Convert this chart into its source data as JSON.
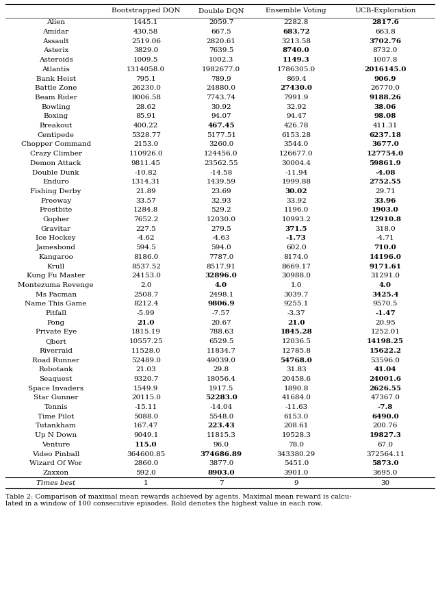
{
  "caption": "Table 2: Comparison of maximal mean rewards achieved by agents. Maximal mean reward is calcu-\nlated in a window of 100 consecutive episodes. Bold denotes the highest value in each row.",
  "columns": [
    "Bootstrapped DQN",
    "Double DQN",
    "Ensemble Voting",
    "UCB-Exploration"
  ],
  "rows": [
    [
      "Alien",
      "1445.1",
      "2059.7",
      "2282.8",
      "2817.6",
      [
        0,
        0,
        0,
        1
      ]
    ],
    [
      "Amidar",
      "430.58",
      "667.5",
      "683.72",
      "663.8",
      [
        0,
        0,
        1,
        0
      ]
    ],
    [
      "Assault",
      "2519.06",
      "2820.61",
      "3213.58",
      "3702.76",
      [
        0,
        0,
        0,
        1
      ]
    ],
    [
      "Asterix",
      "3829.0",
      "7639.5",
      "8740.0",
      "8732.0",
      [
        0,
        0,
        1,
        0
      ]
    ],
    [
      "Asteroids",
      "1009.5",
      "1002.3",
      "1149.3",
      "1007.8",
      [
        0,
        0,
        1,
        0
      ]
    ],
    [
      "Atlantis",
      "1314058.0",
      "1982677.0",
      "1786305.0",
      "2016145.0",
      [
        0,
        0,
        0,
        1
      ]
    ],
    [
      "Bank Heist",
      "795.1",
      "789.9",
      "869.4",
      "906.9",
      [
        0,
        0,
        0,
        1
      ]
    ],
    [
      "Battle Zone",
      "26230.0",
      "24880.0",
      "27430.0",
      "26770.0",
      [
        0,
        0,
        1,
        0
      ]
    ],
    [
      "Beam Rider",
      "8006.58",
      "7743.74",
      "7991.9",
      "9188.26",
      [
        0,
        0,
        0,
        1
      ]
    ],
    [
      "Bowling",
      "28.62",
      "30.92",
      "32.92",
      "38.06",
      [
        0,
        0,
        0,
        1
      ]
    ],
    [
      "Boxing",
      "85.91",
      "94.07",
      "94.47",
      "98.08",
      [
        0,
        0,
        0,
        1
      ]
    ],
    [
      "Breakout",
      "400.22",
      "467.45",
      "426.78",
      "411.31",
      [
        0,
        1,
        0,
        0
      ]
    ],
    [
      "Centipede",
      "5328.77",
      "5177.51",
      "6153.28",
      "6237.18",
      [
        0,
        0,
        0,
        1
      ]
    ],
    [
      "Chopper Command",
      "2153.0",
      "3260.0",
      "3544.0",
      "3677.0",
      [
        0,
        0,
        0,
        1
      ]
    ],
    [
      "Crazy Climber",
      "110926.0",
      "124456.0",
      "126677.0",
      "127754.0",
      [
        0,
        0,
        0,
        1
      ]
    ],
    [
      "Demon Attack",
      "9811.45",
      "23562.55",
      "30004.4",
      "59861.9",
      [
        0,
        0,
        0,
        1
      ]
    ],
    [
      "Double Dunk",
      "-10.82",
      "-14.58",
      "-11.94",
      "-4.08",
      [
        0,
        0,
        0,
        1
      ]
    ],
    [
      "Enduro",
      "1314.31",
      "1439.59",
      "1999.88",
      "2752.55",
      [
        0,
        0,
        0,
        1
      ]
    ],
    [
      "Fishing Derby",
      "21.89",
      "23.69",
      "30.02",
      "29.71",
      [
        0,
        0,
        1,
        0
      ]
    ],
    [
      "Freeway",
      "33.57",
      "32.93",
      "33.92",
      "33.96",
      [
        0,
        0,
        0,
        1
      ]
    ],
    [
      "Frostbite",
      "1284.8",
      "529.2",
      "1196.0",
      "1903.0",
      [
        0,
        0,
        0,
        1
      ]
    ],
    [
      "Gopher",
      "7652.2",
      "12030.0",
      "10993.2",
      "12910.8",
      [
        0,
        0,
        0,
        1
      ]
    ],
    [
      "Gravitar",
      "227.5",
      "279.5",
      "371.5",
      "318.0",
      [
        0,
        0,
        1,
        0
      ]
    ],
    [
      "Ice Hockey",
      "-4.62",
      "-4.63",
      "-1.73",
      "-4.71",
      [
        0,
        0,
        1,
        0
      ]
    ],
    [
      "Jamesbond",
      "594.5",
      "594.0",
      "602.0",
      "710.0",
      [
        0,
        0,
        0,
        1
      ]
    ],
    [
      "Kangaroo",
      "8186.0",
      "7787.0",
      "8174.0",
      "14196.0",
      [
        0,
        0,
        0,
        1
      ]
    ],
    [
      "Krull",
      "8537.52",
      "8517.91",
      "8669.17",
      "9171.61",
      [
        0,
        0,
        0,
        1
      ]
    ],
    [
      "Kung Fu Master",
      "24153.0",
      "32896.0",
      "30988.0",
      "31291.0",
      [
        0,
        1,
        0,
        0
      ]
    ],
    [
      "Montezuma Revenge",
      "2.0",
      "4.0",
      "1.0",
      "4.0",
      [
        0,
        1,
        0,
        1
      ]
    ],
    [
      "Ms Pacman",
      "2508.7",
      "2498.1",
      "3039.7",
      "3425.4",
      [
        0,
        0,
        0,
        1
      ]
    ],
    [
      "Name This Game",
      "8212.4",
      "9806.9",
      "9255.1",
      "9570.5",
      [
        0,
        1,
        0,
        0
      ]
    ],
    [
      "Pitfall",
      "-5.99",
      "-7.57",
      "-3.37",
      "-1.47",
      [
        0,
        0,
        0,
        1
      ]
    ],
    [
      "Pong",
      "21.0",
      "20.67",
      "21.0",
      "20.95",
      [
        1,
        0,
        1,
        0
      ]
    ],
    [
      "Private Eye",
      "1815.19",
      "788.63",
      "1845.28",
      "1252.01",
      [
        0,
        0,
        1,
        0
      ]
    ],
    [
      "Qbert",
      "10557.25",
      "6529.5",
      "12036.5",
      "14198.25",
      [
        0,
        0,
        0,
        1
      ]
    ],
    [
      "Riverraid",
      "11528.0",
      "11834.7",
      "12785.8",
      "15622.2",
      [
        0,
        0,
        0,
        1
      ]
    ],
    [
      "Road Runner",
      "52489.0",
      "49039.0",
      "54768.0",
      "53596.0",
      [
        0,
        0,
        1,
        0
      ]
    ],
    [
      "Robotank",
      "21.03",
      "29.8",
      "31.83",
      "41.04",
      [
        0,
        0,
        0,
        1
      ]
    ],
    [
      "Seaquest",
      "9320.7",
      "18056.4",
      "20458.6",
      "24001.6",
      [
        0,
        0,
        0,
        1
      ]
    ],
    [
      "Space Invaders",
      "1549.9",
      "1917.5",
      "1890.8",
      "2626.55",
      [
        0,
        0,
        0,
        1
      ]
    ],
    [
      "Star Gunner",
      "20115.0",
      "52283.0",
      "41684.0",
      "47367.0",
      [
        0,
        1,
        0,
        0
      ]
    ],
    [
      "Tennis",
      "-15.11",
      "-14.04",
      "-11.63",
      "-7.8",
      [
        0,
        0,
        0,
        1
      ]
    ],
    [
      "Time Pilot",
      "5088.0",
      "5548.0",
      "6153.0",
      "6490.0",
      [
        0,
        0,
        0,
        1
      ]
    ],
    [
      "Tutankham",
      "167.47",
      "223.43",
      "208.61",
      "200.76",
      [
        0,
        1,
        0,
        0
      ]
    ],
    [
      "Up N Down",
      "9049.1",
      "11815.3",
      "19528.3",
      "19827.3",
      [
        0,
        0,
        0,
        1
      ]
    ],
    [
      "Venture",
      "115.0",
      "96.0",
      "78.0",
      "67.0",
      [
        1,
        0,
        0,
        0
      ]
    ],
    [
      "Video Pinball",
      "364600.85",
      "374686.89",
      "343380.29",
      "372564.11",
      [
        0,
        1,
        0,
        0
      ]
    ],
    [
      "Wizard Of Wor",
      "2860.0",
      "3877.0",
      "5451.0",
      "5873.0",
      [
        0,
        0,
        0,
        1
      ]
    ],
    [
      "Zaxxon",
      "592.0",
      "8903.0",
      "3901.0",
      "3695.0",
      [
        0,
        1,
        0,
        0
      ]
    ]
  ],
  "times_best": [
    "1",
    "7",
    "9",
    "30"
  ],
  "font_size": 7.5,
  "fig_width": 6.4,
  "fig_height": 8.98
}
